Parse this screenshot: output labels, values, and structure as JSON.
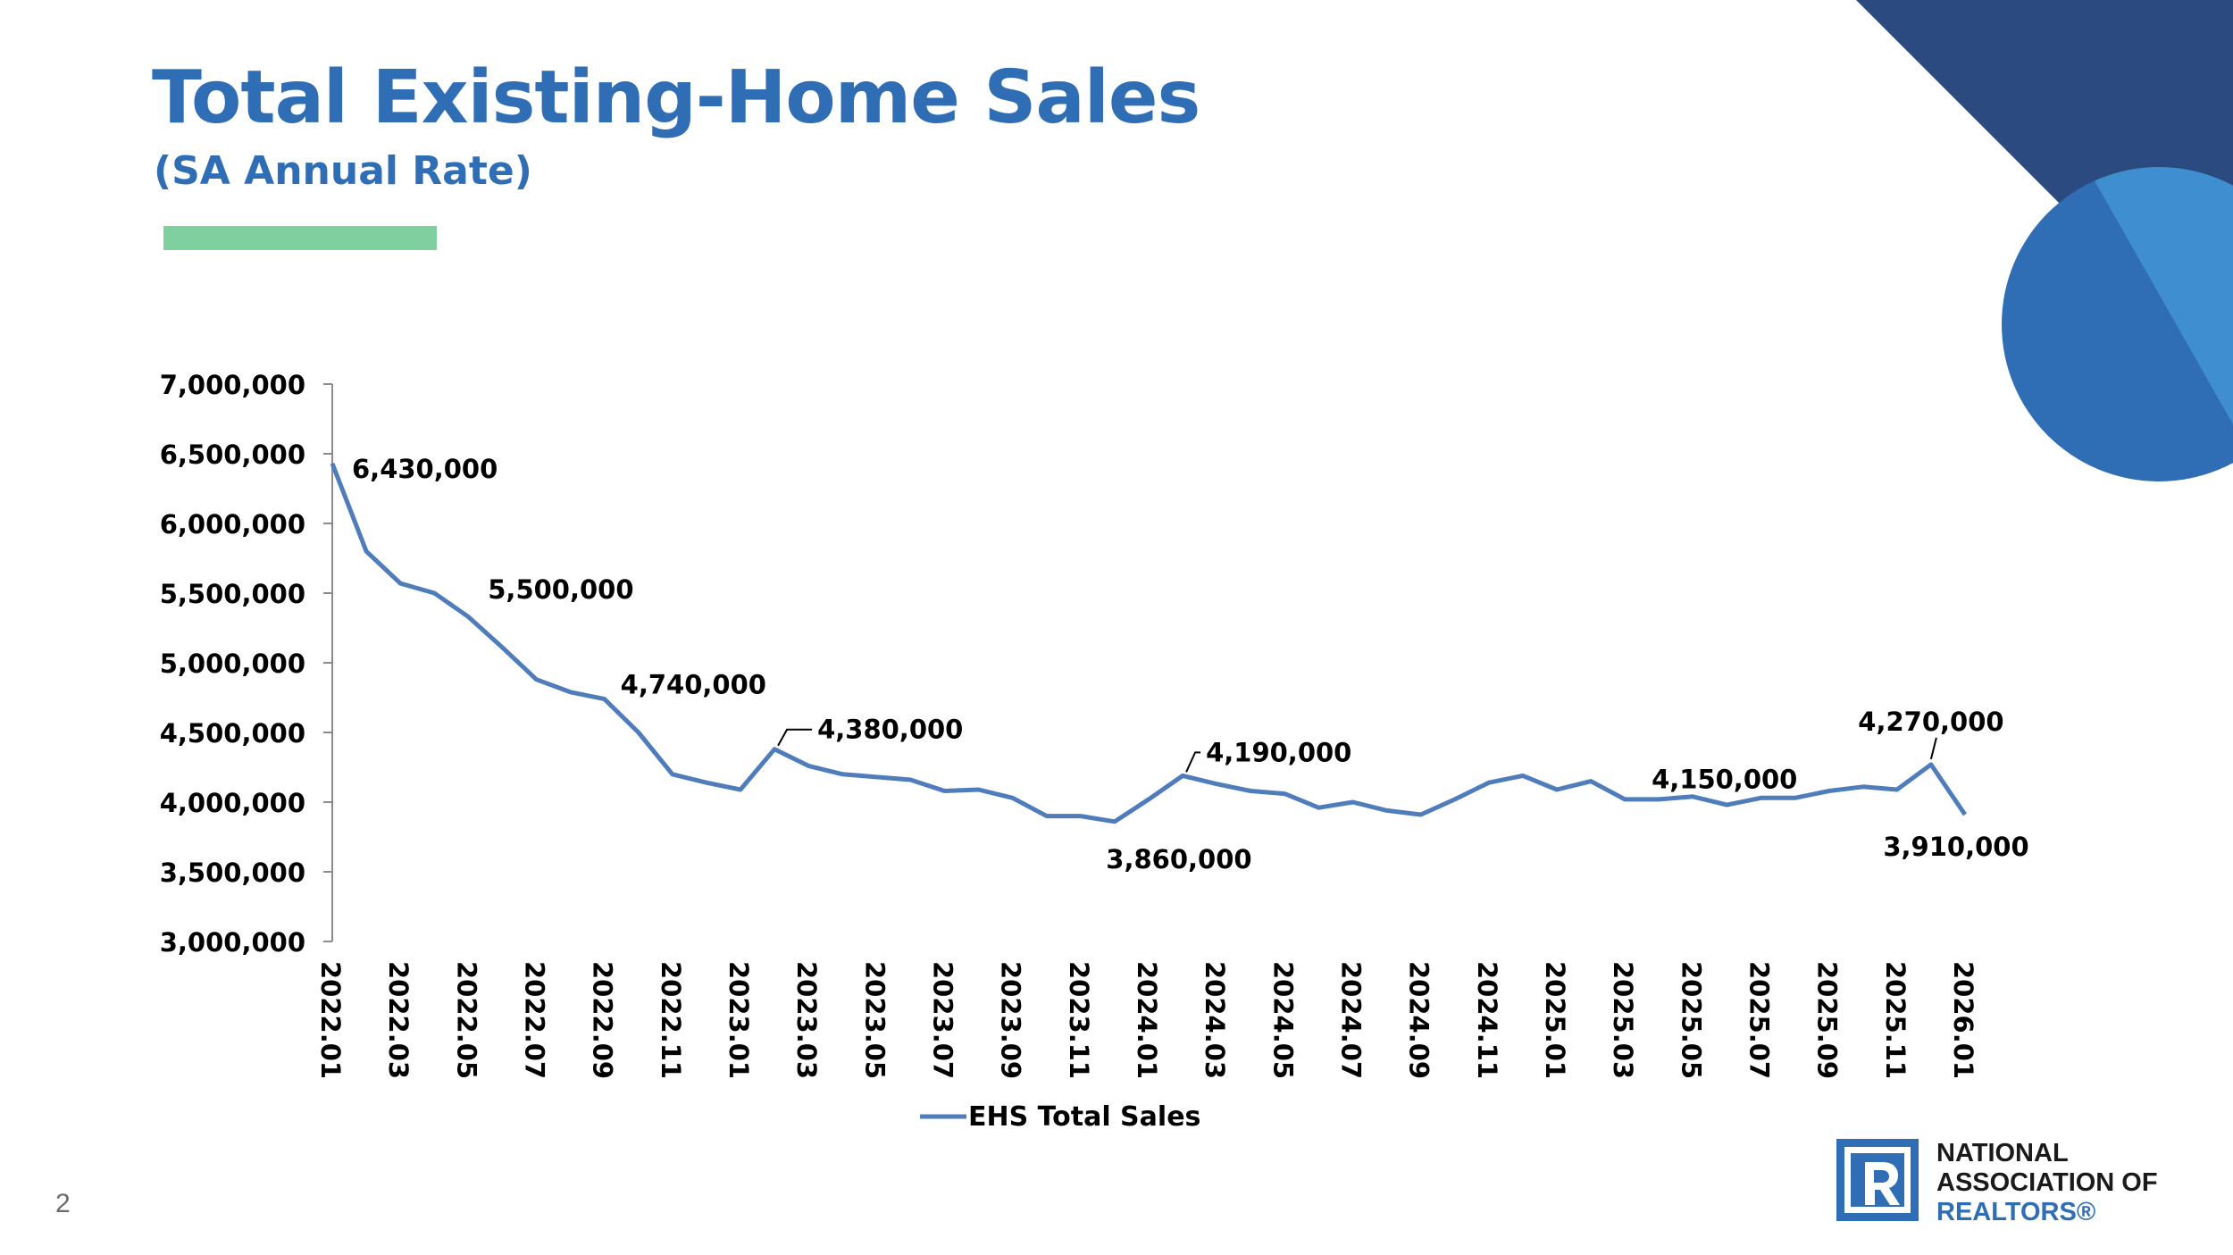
{
  "slide": {
    "title": "Total Existing-Home Sales",
    "subtitle": "(SA Annual Rate)",
    "page_number": "2"
  },
  "logo": {
    "line1": "NATIONAL",
    "line2": "ASSOCIATION OF",
    "line3": "REALTORS®"
  },
  "colors": {
    "title": "#2f6db5",
    "accent_bar": "#7fcf9f",
    "series": "#4f7cba",
    "deco_navy": "#2b4a80",
    "deco_circle_dark": "#2f6db5",
    "deco_circle_light": "#3f8fd0"
  },
  "chart_data": {
    "type": "line",
    "ylim": [
      3000000,
      7000000
    ],
    "yticks": [
      3000000,
      3500000,
      4000000,
      4500000,
      5000000,
      5500000,
      6000000,
      6500000,
      7000000
    ],
    "ytick_labels": [
      "3,000,000",
      "3,500,000",
      "4,000,000",
      "4,500,000",
      "5,000,000",
      "5,500,000",
      "6,000,000",
      "6,500,000",
      "7,000,000"
    ],
    "x": [
      "2022.01",
      "2022.02",
      "2022.03",
      "2022.04",
      "2022.05",
      "2022.06",
      "2022.07",
      "2022.08",
      "2022.09",
      "2022.10",
      "2022.11",
      "2022.12",
      "2023.01",
      "2023.02",
      "2023.03",
      "2023.04",
      "2023.05",
      "2023.06",
      "2023.07",
      "2023.08",
      "2023.09",
      "2023.10",
      "2023.11",
      "2023.12",
      "2024.01",
      "2024.02",
      "2024.03",
      "2024.04",
      "2024.05",
      "2024.06",
      "2024.07",
      "2024.08",
      "2024.09",
      "2024.10",
      "2024.11",
      "2024.12",
      "2025.01",
      "2025.02",
      "2025.03",
      "2025.04",
      "2025.05",
      "2025.06",
      "2025.07",
      "2025.08",
      "2025.09",
      "2025.10",
      "2025.11",
      "2025.12",
      "2026.01"
    ],
    "xtick_labels": [
      "2022.01",
      "2022.03",
      "2022.05",
      "2022.07",
      "2022.09",
      "2022.11",
      "2023.01",
      "2023.03",
      "2023.05",
      "2023.07",
      "2023.09",
      "2023.11",
      "2024.01",
      "2024.03",
      "2024.05",
      "2024.07",
      "2024.09",
      "2024.11",
      "2025.01",
      "2025.03",
      "2025.05",
      "2025.07",
      "2025.09",
      "2025.11",
      "2026.01"
    ],
    "series": [
      {
        "name": "EHS Total Sales",
        "values": [
          6430000,
          5800000,
          5570000,
          5500000,
          5330000,
          5110000,
          4880000,
          4790000,
          4740000,
          4500000,
          4200000,
          4140000,
          4090000,
          4380000,
          4260000,
          4200000,
          4180000,
          4160000,
          4080000,
          4090000,
          4030000,
          3900000,
          3900000,
          3860000,
          4020000,
          4190000,
          4130000,
          4080000,
          4060000,
          3960000,
          4000000,
          3940000,
          3910000,
          4020000,
          4140000,
          4190000,
          4090000,
          4150000,
          4020000,
          4020000,
          4040000,
          3980000,
          4030000,
          4030000,
          4080000,
          4110000,
          4090000,
          4270000,
          3910000
        ]
      }
    ],
    "annotations": [
      {
        "x": "2022.01",
        "text": "6,430,000"
      },
      {
        "x": "2022.04",
        "text": "5,500,000"
      },
      {
        "x": "2022.09",
        "text": "4,740,000"
      },
      {
        "x": "2023.02",
        "text": "4,380,000"
      },
      {
        "x": "2023.12",
        "text": "3,860,000"
      },
      {
        "x": "2024.02",
        "text": "4,190,000"
      },
      {
        "x": "2025.02",
        "text": "4,150,000"
      },
      {
        "x": "2025.12",
        "text": "4,270,000"
      },
      {
        "x": "2026.01",
        "text": "3,910,000"
      }
    ],
    "legend": "bottom",
    "grid": false
  }
}
